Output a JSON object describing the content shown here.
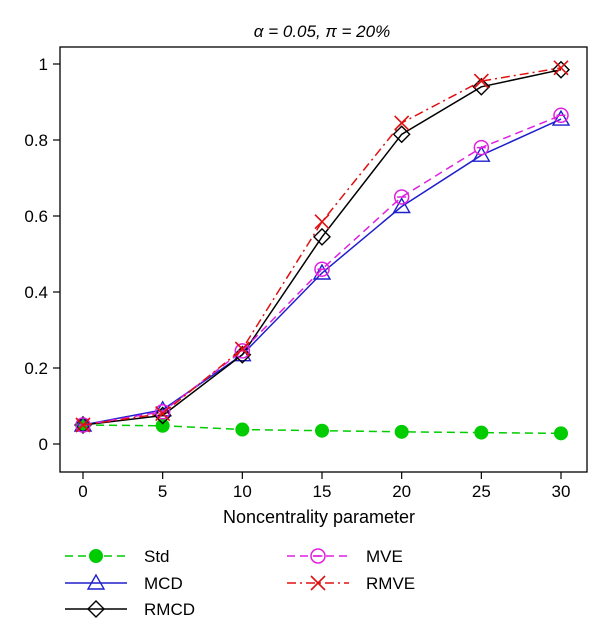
{
  "chart_data": {
    "type": "line",
    "title": "α = 0.05, π = 20%",
    "xlabel": "Noncentrality parameter",
    "ylabel": "",
    "x": [
      0,
      5,
      10,
      15,
      20,
      25,
      30
    ],
    "xlim": [
      0,
      30
    ],
    "ylim": [
      0,
      1
    ],
    "x_ticks": [
      "0",
      "5",
      "10",
      "15",
      "20",
      "25",
      "30"
    ],
    "y_ticks": [
      "0",
      "0.2",
      "0.4",
      "0.6",
      "0.8",
      "1"
    ],
    "grid": false,
    "legend_position": "bottom",
    "series": [
      {
        "name": "Std",
        "color": "#00cc00",
        "dash": "8,5",
        "marker": "filled-circle",
        "values": [
          0.05,
          0.048,
          0.038,
          0.035,
          0.032,
          0.03,
          0.028
        ]
      },
      {
        "name": "MCD",
        "color": "#1f1fcc",
        "dash": "",
        "marker": "triangle",
        "values": [
          0.05,
          0.09,
          0.235,
          0.45,
          0.625,
          0.76,
          0.855
        ]
      },
      {
        "name": "RMCD",
        "color": "#000000",
        "dash": "",
        "marker": "diamond",
        "values": [
          0.05,
          0.075,
          0.235,
          0.545,
          0.815,
          0.94,
          0.985
        ]
      },
      {
        "name": "MVE",
        "color": "#e020e0",
        "dash": "8,5",
        "marker": "open-circle",
        "values": [
          0.05,
          0.085,
          0.245,
          0.46,
          0.65,
          0.78,
          0.865
        ]
      },
      {
        "name": "RMVE",
        "color": "#e01010",
        "dash": "9,4,2,4",
        "marker": "x",
        "values": [
          0.05,
          0.08,
          0.25,
          0.585,
          0.845,
          0.955,
          0.99
        ]
      }
    ]
  }
}
